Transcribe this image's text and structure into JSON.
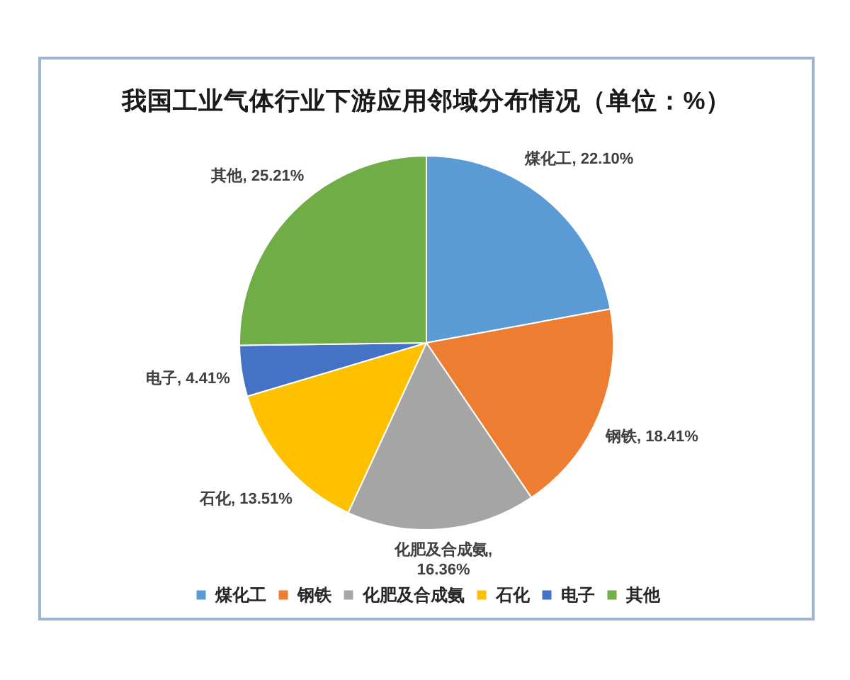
{
  "chart_data": {
    "type": "pie",
    "title": "我国工业气体行业下游应用邻域分布情况（单位：%）",
    "categories": [
      "煤化工",
      "钢铁",
      "化肥及合成氨",
      "石化",
      "电子",
      "其他"
    ],
    "values": [
      22.1,
      18.41,
      16.36,
      13.51,
      4.41,
      25.21
    ],
    "colors": [
      "#5b9bd5",
      "#ed7d31",
      "#a5a5a5",
      "#ffc000",
      "#4472c4",
      "#70ad47"
    ],
    "value_labels": [
      "煤化工, 22.10%",
      "钢铁, 18.41%",
      "化肥及合成氨, 16.36%",
      "石化, 13.51%",
      "电子, 4.41%",
      "其他, 25.21%"
    ],
    "legend": "bottom"
  }
}
